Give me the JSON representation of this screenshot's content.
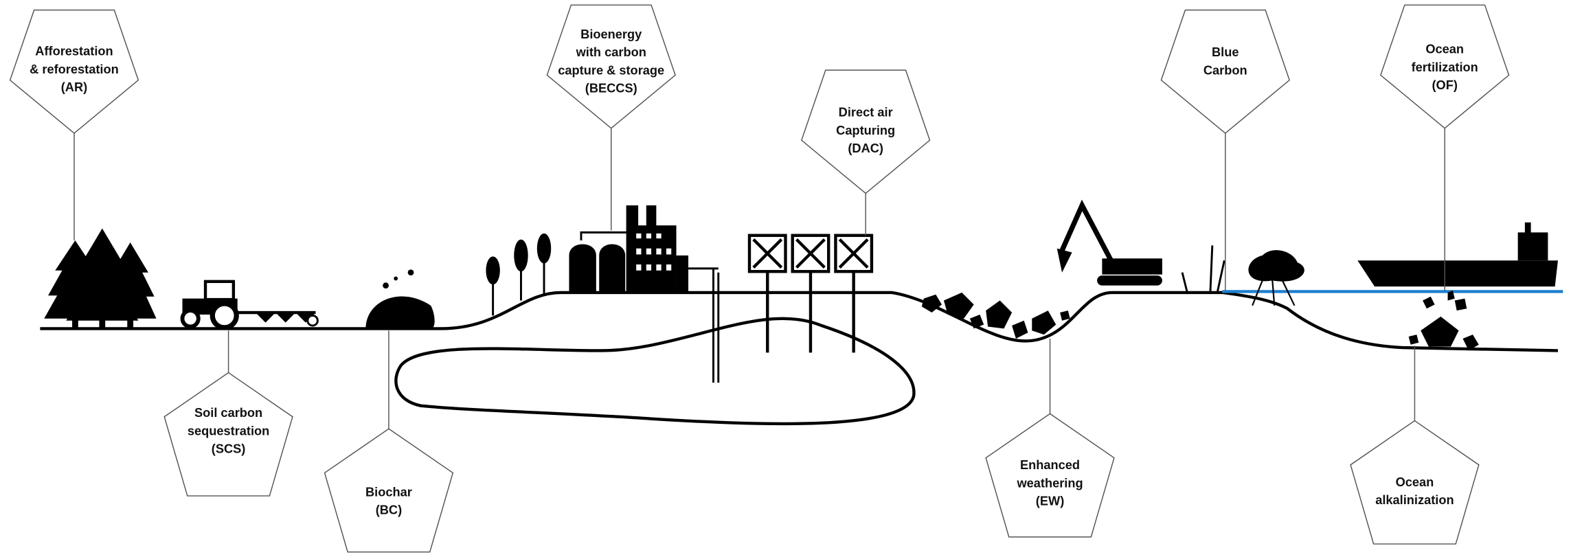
{
  "nodes": [
    {
      "label": [
        "Afforestation",
        "& reforestation",
        "(AR)"
      ]
    },
    {
      "label": [
        "Bioenergy",
        "with carbon",
        "capture & storage",
        "(BECCS)"
      ]
    },
    {
      "label": [
        "Direct air",
        "Capturing",
        "(DAC)"
      ]
    },
    {
      "label": [
        "Blue",
        "Carbon"
      ]
    },
    {
      "label": [
        "Ocean",
        "fertilization",
        "(OF)"
      ]
    },
    {
      "label": [
        "Soil carbon",
        "sequestration",
        "(SCS)"
      ]
    },
    {
      "label": [
        "Biochar",
        "(BC)"
      ]
    },
    {
      "label": [
        "Enhanced",
        "weathering",
        "(EW)"
      ]
    },
    {
      "label": [
        "Ocean",
        "alkalinization"
      ]
    }
  ]
}
